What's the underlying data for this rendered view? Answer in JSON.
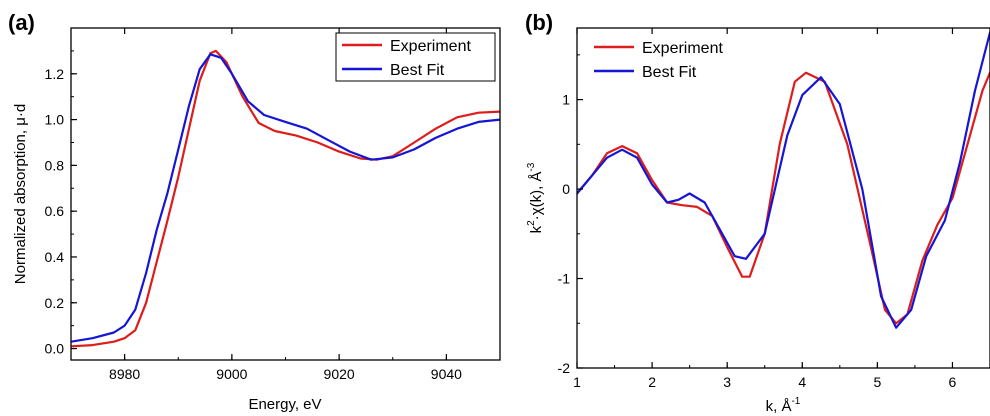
{
  "chart_data": [
    {
      "type": "line",
      "panel_label": "(a)",
      "xlabel": "Energy, eV",
      "ylabel": "Normalized absorption, μ·d",
      "xlim": [
        8970,
        9050
      ],
      "ylim": [
        -0.05,
        1.4
      ],
      "xticks": [
        8980,
        9000,
        9020,
        9040
      ],
      "yticks": [
        0.0,
        0.2,
        0.4,
        0.6,
        0.8,
        1.0,
        1.2
      ],
      "ytick_labels": [
        "0.0",
        "0.2",
        "0.4",
        "0.6",
        "0.8",
        "1.0",
        "1.2"
      ],
      "legend": "top-right",
      "series": [
        {
          "name": "Experiment",
          "color": "#dd1c1c",
          "points": [
            [
              8970,
              0.01
            ],
            [
              8974,
              0.015
            ],
            [
              8978,
              0.03
            ],
            [
              8980,
              0.045
            ],
            [
              8982,
              0.08
            ],
            [
              8984,
              0.2
            ],
            [
              8986,
              0.38
            ],
            [
              8988,
              0.56
            ],
            [
              8990,
              0.75
            ],
            [
              8992,
              0.96
            ],
            [
              8994,
              1.17
            ],
            [
              8996,
              1.29
            ],
            [
              8997,
              1.3
            ],
            [
              8999,
              1.25
            ],
            [
              9002,
              1.1
            ],
            [
              9005,
              0.985
            ],
            [
              9008,
              0.95
            ],
            [
              9012,
              0.93
            ],
            [
              9016,
              0.9
            ],
            [
              9020,
              0.86
            ],
            [
              9024,
              0.83
            ],
            [
              9027,
              0.825
            ],
            [
              9030,
              0.84
            ],
            [
              9034,
              0.9
            ],
            [
              9038,
              0.96
            ],
            [
              9042,
              1.01
            ],
            [
              9046,
              1.03
            ],
            [
              9050,
              1.035
            ]
          ]
        },
        {
          "name": "Best Fit",
          "color": "#1515d6",
          "points": [
            [
              8970,
              0.03
            ],
            [
              8974,
              0.045
            ],
            [
              8978,
              0.07
            ],
            [
              8980,
              0.1
            ],
            [
              8982,
              0.17
            ],
            [
              8984,
              0.33
            ],
            [
              8986,
              0.52
            ],
            [
              8988,
              0.68
            ],
            [
              8990,
              0.87
            ],
            [
              8992,
              1.06
            ],
            [
              8994,
              1.22
            ],
            [
              8996,
              1.285
            ],
            [
              8998,
              1.27
            ],
            [
              9000,
              1.2
            ],
            [
              9003,
              1.08
            ],
            [
              9006,
              1.02
            ],
            [
              9010,
              0.99
            ],
            [
              9014,
              0.96
            ],
            [
              9018,
              0.91
            ],
            [
              9022,
              0.86
            ],
            [
              9026,
              0.825
            ],
            [
              9030,
              0.835
            ],
            [
              9034,
              0.87
            ],
            [
              9038,
              0.92
            ],
            [
              9042,
              0.96
            ],
            [
              9046,
              0.99
            ],
            [
              9050,
              1.0
            ]
          ]
        }
      ]
    },
    {
      "type": "line",
      "panel_label": "(b)",
      "xlabel": "k, Å",
      "xlabel_exp": "-1",
      "ylabel": "k",
      "ylabel_exp": "2",
      "ylabel_mid": "·χ(k), Å",
      "ylabel_exp2": "-3",
      "xlim": [
        1,
        6.5
      ],
      "ylim": [
        -2,
        1.8
      ],
      "xticks": [
        1,
        2,
        3,
        4,
        5,
        6
      ],
      "yticks": [
        -2,
        -1,
        0,
        1
      ],
      "ytick_labels": [
        "-2",
        "-1",
        "0",
        "1"
      ],
      "legend": "top-left",
      "series": [
        {
          "name": "Experiment",
          "color": "#dd1c1c",
          "points": [
            [
              1,
              -0.05
            ],
            [
              1.2,
              0.15
            ],
            [
              1.4,
              0.4
            ],
            [
              1.6,
              0.48
            ],
            [
              1.8,
              0.4
            ],
            [
              2.0,
              0.1
            ],
            [
              2.2,
              -0.15
            ],
            [
              2.4,
              -0.18
            ],
            [
              2.6,
              -0.2
            ],
            [
              2.8,
              -0.3
            ],
            [
              3.0,
              -0.65
            ],
            [
              3.2,
              -0.98
            ],
            [
              3.3,
              -0.98
            ],
            [
              3.5,
              -0.5
            ],
            [
              3.7,
              0.5
            ],
            [
              3.9,
              1.2
            ],
            [
              4.05,
              1.3
            ],
            [
              4.3,
              1.2
            ],
            [
              4.6,
              0.5
            ],
            [
              4.9,
              -0.6
            ],
            [
              5.1,
              -1.35
            ],
            [
              5.25,
              -1.5
            ],
            [
              5.4,
              -1.4
            ],
            [
              5.6,
              -0.8
            ],
            [
              5.8,
              -0.4
            ],
            [
              6.0,
              -0.1
            ],
            [
              6.2,
              0.5
            ],
            [
              6.4,
              1.1
            ],
            [
              6.5,
              1.3
            ]
          ]
        },
        {
          "name": "Best Fit",
          "color": "#1515d6",
          "points": [
            [
              1,
              -0.05
            ],
            [
              1.2,
              0.15
            ],
            [
              1.4,
              0.35
            ],
            [
              1.6,
              0.44
            ],
            [
              1.8,
              0.35
            ],
            [
              2.0,
              0.05
            ],
            [
              2.2,
              -0.15
            ],
            [
              2.35,
              -0.12
            ],
            [
              2.5,
              -0.05
            ],
            [
              2.7,
              -0.15
            ],
            [
              2.9,
              -0.45
            ],
            [
              3.1,
              -0.75
            ],
            [
              3.25,
              -0.78
            ],
            [
              3.5,
              -0.5
            ],
            [
              3.8,
              0.6
            ],
            [
              4.0,
              1.05
            ],
            [
              4.25,
              1.25
            ],
            [
              4.5,
              0.95
            ],
            [
              4.8,
              0.0
            ],
            [
              5.05,
              -1.2
            ],
            [
              5.25,
              -1.55
            ],
            [
              5.45,
              -1.35
            ],
            [
              5.65,
              -0.75
            ],
            [
              5.9,
              -0.35
            ],
            [
              6.1,
              0.3
            ],
            [
              6.3,
              1.1
            ],
            [
              6.5,
              1.75
            ]
          ]
        }
      ]
    }
  ]
}
